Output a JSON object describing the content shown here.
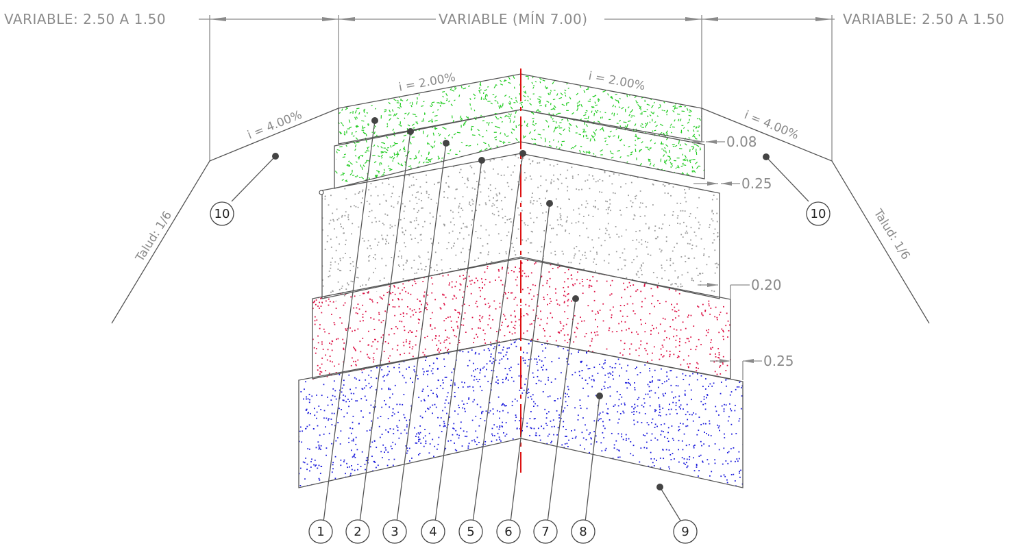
{
  "dimensions": {
    "left": "VARIABLE: 2.50 A 1.50",
    "center": "VARIABLE (MÍN 7.00)",
    "right": "VARIABLE: 2.50 A 1.50"
  },
  "slopes": {
    "top_left": "i = 2.00%",
    "top_right": "i = 2.00%",
    "shoulder_left": "i = 4.00%",
    "shoulder_right": "i = 4.00%",
    "talud_left": "Talud: 1/6",
    "talud_right": "Talud: 1/6"
  },
  "thicknesses": [
    "0.08",
    "0.25",
    "0.20",
    "0.25"
  ],
  "callouts": [
    "1",
    "2",
    "3",
    "4",
    "5",
    "6",
    "7",
    "8",
    "9"
  ],
  "shoulder_callouts": [
    "10",
    "10"
  ],
  "colors": {
    "surface": "#22cc22",
    "base": "#9a9a9a",
    "subbase": "#dd1144",
    "subgrade": "#1a1adc",
    "centerline": "#dd1111",
    "lines": "#555555",
    "dim": "#8a8a8a"
  }
}
